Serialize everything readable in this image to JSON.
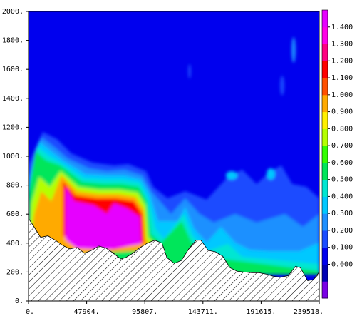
{
  "chart_data": {
    "type": "heatmap",
    "title": "",
    "xlabel": "",
    "ylabel": "",
    "xlim": [
      0,
      239518
    ],
    "ylim": [
      0,
      2000
    ],
    "x_ticks": [
      {
        "value": 0,
        "label": "0."
      },
      {
        "value": 47904,
        "label": "47904."
      },
      {
        "value": 95807,
        "label": "95807."
      },
      {
        "value": 143711,
        "label": "143711."
      },
      {
        "value": 191615,
        "label": "191615."
      },
      {
        "value": 239518,
        "label": "239518."
      }
    ],
    "y_ticks": [
      {
        "value": 0,
        "label": "0."
      },
      {
        "value": 200,
        "label": "200."
      },
      {
        "value": 400,
        "label": "400."
      },
      {
        "value": 600,
        "label": "600."
      },
      {
        "value": 800,
        "label": "800."
      },
      {
        "value": 1000,
        "label": "1000."
      },
      {
        "value": 1200,
        "label": "1200."
      },
      {
        "value": 1400,
        "label": "1400."
      },
      {
        "value": 1600,
        "label": "1600."
      },
      {
        "value": 1800,
        "label": "1800."
      },
      {
        "value": 2000,
        "label": "2000."
      }
    ],
    "colorbar": {
      "levels": [
        {
          "label": "",
          "color": "#7a00e6"
        },
        {
          "label": "0.000",
          "color": "#0000b4"
        },
        {
          "label": "0.100",
          "color": "#0000ee"
        },
        {
          "label": "0.200",
          "color": "#1a4cff"
        },
        {
          "label": "0.300",
          "color": "#1e90ff"
        },
        {
          "label": "0.400",
          "color": "#00c8ff"
        },
        {
          "label": "0.500",
          "color": "#00e6d2"
        },
        {
          "label": "0.600",
          "color": "#00e65a"
        },
        {
          "label": "0.700",
          "color": "#32ff00"
        },
        {
          "label": "0.800",
          "color": "#b4ff00"
        },
        {
          "label": "0.900",
          "color": "#fff000"
        },
        {
          "label": "1.000",
          "color": "#ffaa00"
        },
        {
          "label": "1.100",
          "color": "#ff5000"
        },
        {
          "label": "1.200",
          "color": "#ff0000"
        },
        {
          "label": "1.300",
          "color": "#ff0080"
        },
        {
          "label": "1.400",
          "color": "#ff00e6"
        },
        {
          "label": "",
          "color": "#e600ff"
        }
      ]
    },
    "terrain": {
      "x": [
        0,
        4000,
        10000,
        16000,
        22000,
        28000,
        34000,
        40000,
        46000,
        52000,
        58000,
        64000,
        70000,
        76000,
        80000,
        86000,
        92000,
        98000,
        104000,
        110000,
        114000,
        120000,
        126000,
        132000,
        138000,
        142000,
        148000,
        154000,
        160000,
        166000,
        172000,
        178000,
        184000,
        190000,
        196000,
        202000,
        208000,
        214000,
        220000,
        224000,
        230000,
        235000,
        239518
      ],
      "y": [
        570,
        520,
        440,
        450,
        420,
        385,
        360,
        370,
        330,
        350,
        380,
        365,
        330,
        290,
        300,
        330,
        370,
        400,
        420,
        400,
        300,
        260,
        280,
        360,
        420,
        420,
        350,
        340,
        310,
        230,
        205,
        200,
        195,
        195,
        185,
        170,
        165,
        175,
        240,
        230,
        140,
        150,
        200
      ]
    },
    "background_color": "#0000ee",
    "terrain_fill": "hatched"
  }
}
